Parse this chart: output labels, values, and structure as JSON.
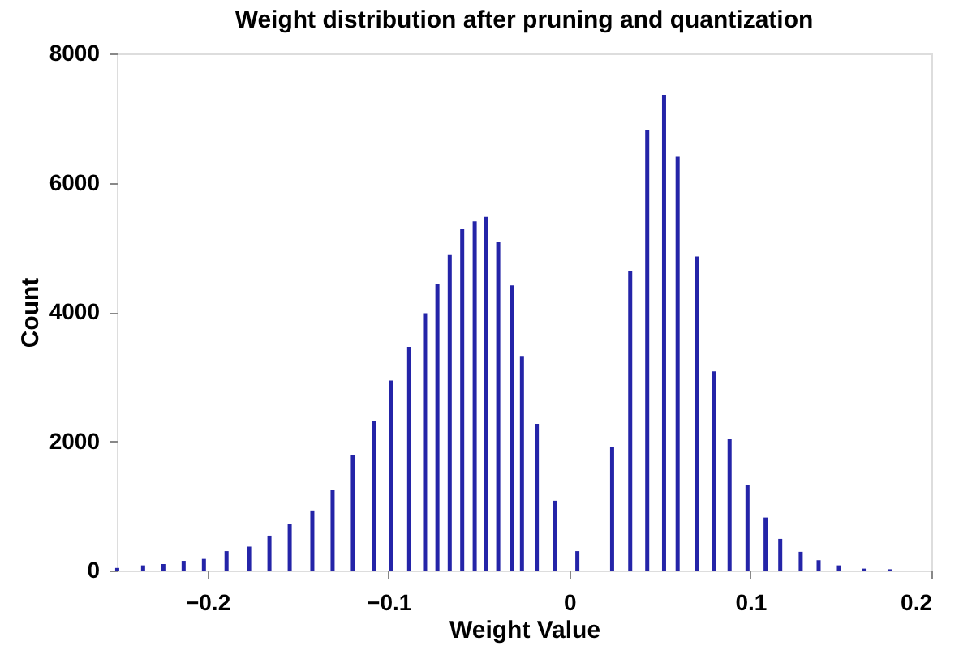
{
  "chart_data": {
    "type": "bar",
    "title": "Weight distribution after pruning and quantization",
    "xlabel": "Weight Value",
    "ylabel": "Count",
    "x": [
      -0.2498,
      -0.2355,
      -0.2243,
      -0.2131,
      -0.2019,
      -0.1894,
      -0.1769,
      -0.1657,
      -0.1545,
      -0.142,
      -0.1308,
      -0.1196,
      -0.1078,
      -0.0984,
      -0.0885,
      -0.0797,
      -0.0729,
      -0.0661,
      -0.0592,
      -0.0523,
      -0.0461,
      -0.0393,
      -0.0318,
      -0.0262,
      -0.018,
      -0.0081,
      0.0044,
      0.0236,
      0.0336,
      0.043,
      0.0523,
      0.0598,
      0.0704,
      0.0797,
      0.0885,
      0.0984,
      0.1084,
      0.1165,
      0.1278,
      0.1377,
      0.1489,
      0.1626,
      0.1769
    ],
    "series": [
      {
        "color": "#2424a8",
        "values": [
          40,
          80,
          100,
          150,
          180,
          300,
          370,
          540,
          720,
          930,
          1250,
          1790,
          2310,
          2940,
          3460,
          3980,
          4430,
          4880,
          5290,
          5400,
          5470,
          5090,
          4410,
          3320,
          2270,
          1080,
          300,
          1910,
          4640,
          6820,
          7360,
          6400,
          4860,
          3080,
          2030,
          1320,
          820,
          490,
          290,
          160,
          80,
          30,
          20
        ]
      }
    ],
    "xlim": [
      -0.25,
      0.2
    ],
    "xticks": [
      -0.2,
      -0.1,
      0,
      0.1,
      0.2
    ],
    "ylim": [
      0,
      8000
    ],
    "yticks": [
      0,
      2000,
      4000,
      6000,
      8000
    ],
    "grid": false
  }
}
